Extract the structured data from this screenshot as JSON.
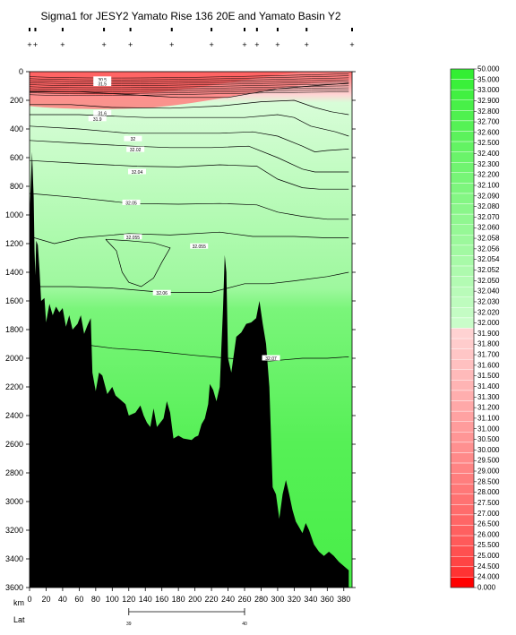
{
  "chart_data": {
    "type": "heatmap",
    "title": "Sigma1 for JESY2 Yamato Rise 136 20E and Yamato Basin Y2",
    "xlabel": "km",
    "x_ticks": [
      0,
      20,
      40,
      60,
      80,
      100,
      120,
      140,
      160,
      180,
      200,
      220,
      240,
      260,
      280,
      300,
      320,
      340,
      360,
      380
    ],
    "xlim": [
      0,
      390
    ],
    "y_ticks": [
      0,
      200,
      400,
      600,
      800,
      1000,
      1200,
      1400,
      1600,
      1800,
      2000,
      2200,
      2400,
      2600,
      2800,
      3000,
      3200,
      3400,
      3600
    ],
    "ylim": [
      3600,
      0
    ],
    "lat_label": "Lat",
    "lat_ticks": [
      {
        "km": 120,
        "label": "39"
      },
      {
        "km": 260,
        "label": "40"
      }
    ],
    "stations_km": [
      0,
      7,
      40,
      90,
      122,
      172,
      220,
      260,
      275,
      300,
      335,
      390
    ],
    "colorbar": {
      "levels": [
        "50.000",
        "35.000",
        "33.000",
        "32.900",
        "32.800",
        "32.700",
        "32.600",
        "32.500",
        "32.400",
        "32.300",
        "32.200",
        "32.100",
        "32.090",
        "32.080",
        "32.070",
        "32.060",
        "32.058",
        "32.056",
        "32.054",
        "32.052",
        "32.050",
        "32.040",
        "32.030",
        "32.020",
        "32.000",
        "31.900",
        "31.800",
        "31.700",
        "31.600",
        "31.500",
        "31.400",
        "31.300",
        "31.200",
        "31.100",
        "31.000",
        "30.500",
        "30.000",
        "29.500",
        "29.000",
        "28.500",
        "28.000",
        "27.500",
        "27.000",
        "26.500",
        "26.000",
        "25.500",
        "25.000",
        "24.500",
        "24.000",
        "0.000"
      ],
      "colors_top": [
        "#33ee33",
        "#3af03a",
        "#41f041",
        "#48f048",
        "#4ff14f",
        "#55f255",
        "#5cf25c",
        "#63f363",
        "#6af46a",
        "#70f470",
        "#77f577",
        "#7df57d",
        "#84f684",
        "#8af68a",
        "#90f790",
        "#96f896",
        "#9cf89c",
        "#a2f9a2",
        "#a8faa8",
        "#aefaae",
        "#b3fbb3",
        "#b9fbb9",
        "#befcbe",
        "#c4fcc4",
        "#c9fdc9"
      ],
      "colors_bottom": [
        "#ffd2d2",
        "#ffcccc",
        "#ffc6c6",
        "#ffc0c0",
        "#ffbaba",
        "#ffb4b4",
        "#ffaeae",
        "#ffa8a8",
        "#ffa2a2",
        "#ff9c9c",
        "#ff9696",
        "#ff9090",
        "#ff8a8a",
        "#ff8484",
        "#ff7e7e",
        "#ff7878",
        "#ff7272",
        "#ff6c6c",
        "#ff6666",
        "#ff6060",
        "#ff5a5a",
        "#ff5050",
        "#ff4444",
        "#ff3333",
        "#ff0000"
      ]
    },
    "contour_labels": [
      {
        "text": "32",
        "x": 125,
        "y": 470
      },
      {
        "text": "32.02",
        "x": 128,
        "y": 545
      },
      {
        "text": "32.04",
        "x": 130,
        "y": 700
      },
      {
        "text": "32.05",
        "x": 123,
        "y": 915
      },
      {
        "text": "32.055",
        "x": 125,
        "y": 1155
      },
      {
        "text": "32.055",
        "x": 205,
        "y": 1220
      },
      {
        "text": "32.06",
        "x": 160,
        "y": 1545
      },
      {
        "text": "32.07",
        "x": 292,
        "y": 2000
      },
      {
        "text": "30.5",
        "x": 88,
        "y": 55
      },
      {
        "text": "31.5",
        "x": 88,
        "y": 85
      },
      {
        "text": "31.6",
        "x": 88,
        "y": 290
      },
      {
        "text": "31.9",
        "x": 82,
        "y": 330
      }
    ],
    "bottom_depth_m": [
      [
        0,
        3600
      ],
      [
        0,
        1000
      ],
      [
        3,
        560
      ],
      [
        5,
        880
      ],
      [
        6,
        1250
      ],
      [
        7,
        1420
      ],
      [
        8,
        1180
      ],
      [
        10,
        1210
      ],
      [
        12,
        1380
      ],
      [
        14,
        1600
      ],
      [
        18,
        1580
      ],
      [
        20,
        1750
      ],
      [
        24,
        1620
      ],
      [
        28,
        1700
      ],
      [
        32,
        1640
      ],
      [
        36,
        1680
      ],
      [
        40,
        1650
      ],
      [
        44,
        1780
      ],
      [
        48,
        1700
      ],
      [
        52,
        1800
      ],
      [
        58,
        1760
      ],
      [
        62,
        1700
      ],
      [
        66,
        1830
      ],
      [
        70,
        1770
      ],
      [
        74,
        1720
      ],
      [
        76,
        2100
      ],
      [
        80,
        2230
      ],
      [
        84,
        2100
      ],
      [
        88,
        2120
      ],
      [
        94,
        2250
      ],
      [
        100,
        2200
      ],
      [
        104,
        2260
      ],
      [
        110,
        2290
      ],
      [
        116,
        2320
      ],
      [
        120,
        2400
      ],
      [
        128,
        2380
      ],
      [
        134,
        2330
      ],
      [
        138,
        2400
      ],
      [
        142,
        2450
      ],
      [
        146,
        2480
      ],
      [
        150,
        2350
      ],
      [
        154,
        2480
      ],
      [
        158,
        2450
      ],
      [
        162,
        2420
      ],
      [
        166,
        2300
      ],
      [
        170,
        2380
      ],
      [
        174,
        2560
      ],
      [
        180,
        2540
      ],
      [
        186,
        2560
      ],
      [
        196,
        2570
      ],
      [
        200,
        2550
      ],
      [
        204,
        2540
      ],
      [
        208,
        2460
      ],
      [
        212,
        2420
      ],
      [
        216,
        2320
      ],
      [
        218,
        2180
      ],
      [
        222,
        2220
      ],
      [
        226,
        2300
      ],
      [
        230,
        2200
      ],
      [
        232,
        1920
      ],
      [
        234,
        1650
      ],
      [
        236,
        1280
      ],
      [
        238,
        1400
      ],
      [
        240,
        2000
      ],
      [
        244,
        2100
      ],
      [
        250,
        1850
      ],
      [
        256,
        1820
      ],
      [
        262,
        1760
      ],
      [
        268,
        1750
      ],
      [
        274,
        1720
      ],
      [
        278,
        1600
      ],
      [
        282,
        1760
      ],
      [
        286,
        1900
      ],
      [
        290,
        2200
      ],
      [
        294,
        2900
      ],
      [
        298,
        2950
      ],
      [
        302,
        3120
      ],
      [
        306,
        2950
      ],
      [
        310,
        2850
      ],
      [
        314,
        2950
      ],
      [
        318,
        3060
      ],
      [
        322,
        3140
      ],
      [
        326,
        3180
      ],
      [
        330,
        3220
      ],
      [
        334,
        3150
      ],
      [
        338,
        3200
      ],
      [
        344,
        3300
      ],
      [
        350,
        3350
      ],
      [
        356,
        3380
      ],
      [
        362,
        3350
      ],
      [
        368,
        3380
      ],
      [
        374,
        3420
      ],
      [
        380,
        3450
      ],
      [
        386,
        3480
      ],
      [
        386,
        3600
      ]
    ],
    "contours": [
      [
        [
          0,
          140
        ],
        [
          60,
          140
        ],
        [
          120,
          160
        ],
        [
          180,
          180
        ],
        [
          240,
          180
        ],
        [
          300,
          120
        ],
        [
          340,
          100
        ],
        [
          386,
          80
        ]
      ],
      [
        [
          0,
          230
        ],
        [
          50,
          230
        ],
        [
          100,
          250
        ],
        [
          170,
          255
        ],
        [
          230,
          240
        ],
        [
          280,
          210
        ],
        [
          320,
          200
        ],
        [
          345,
          250
        ],
        [
          365,
          280
        ],
        [
          386,
          300
        ]
      ],
      [
        [
          0,
          300
        ],
        [
          60,
          300
        ],
        [
          140,
          320
        ],
        [
          200,
          320
        ],
        [
          260,
          320
        ],
        [
          300,
          300
        ],
        [
          320,
          320
        ],
        [
          340,
          380
        ],
        [
          370,
          420
        ],
        [
          386,
          450
        ]
      ],
      [
        [
          0,
          380
        ],
        [
          60,
          400
        ],
        [
          120,
          430
        ],
        [
          180,
          430
        ],
        [
          230,
          430
        ],
        [
          270,
          420
        ],
        [
          300,
          450
        ],
        [
          330,
          520
        ],
        [
          345,
          560
        ],
        [
          360,
          550
        ],
        [
          386,
          540
        ]
      ],
      [
        [
          0,
          480
        ],
        [
          60,
          500
        ],
        [
          125,
          520
        ],
        [
          170,
          530
        ],
        [
          220,
          530
        ],
        [
          265,
          520
        ],
        [
          300,
          600
        ],
        [
          330,
          680
        ],
        [
          345,
          700
        ],
        [
          370,
          700
        ],
        [
          386,
          700
        ]
      ],
      [
        [
          0,
          620
        ],
        [
          60,
          640
        ],
        [
          130,
          660
        ],
        [
          180,
          665
        ],
        [
          230,
          650
        ],
        [
          275,
          660
        ],
        [
          300,
          750
        ],
        [
          330,
          810
        ],
        [
          350,
          820
        ],
        [
          386,
          820
        ]
      ],
      [
        [
          0,
          850
        ],
        [
          60,
          880
        ],
        [
          123,
          920
        ],
        [
          180,
          925
        ],
        [
          230,
          920
        ],
        [
          275,
          930
        ],
        [
          300,
          980
        ],
        [
          330,
          1010
        ],
        [
          360,
          1030
        ],
        [
          386,
          1030
        ]
      ],
      [
        [
          0,
          1150
        ],
        [
          30,
          1200
        ],
        [
          60,
          1160
        ],
        [
          120,
          1130
        ],
        [
          170,
          1140
        ],
        [
          230,
          1120
        ],
        [
          270,
          1150
        ],
        [
          320,
          1150
        ],
        [
          360,
          1160
        ],
        [
          386,
          1160
        ]
      ],
      [
        [
          0,
          1500
        ],
        [
          50,
          1500
        ],
        [
          100,
          1510
        ],
        [
          160,
          1540
        ],
        [
          220,
          1540
        ],
        [
          260,
          1480
        ],
        [
          290,
          1480
        ],
        [
          320,
          1460
        ],
        [
          360,
          1430
        ],
        [
          386,
          1400
        ]
      ],
      [
        [
          0,
          1880
        ],
        [
          60,
          1900
        ],
        [
          100,
          1930
        ],
        [
          150,
          1950
        ],
        [
          200,
          1980
        ],
        [
          240,
          2000
        ],
        [
          290,
          2020
        ],
        [
          330,
          2000
        ],
        [
          360,
          2000
        ],
        [
          386,
          1990
        ]
      ]
    ],
    "closed_contour": [
      [
        92,
        1170
      ],
      [
        105,
        1250
      ],
      [
        112,
        1400
      ],
      [
        120,
        1470
      ],
      [
        135,
        1500
      ],
      [
        150,
        1440
      ],
      [
        160,
        1330
      ],
      [
        170,
        1230
      ],
      [
        150,
        1195
      ],
      [
        120,
        1180
      ],
      [
        92,
        1170
      ]
    ]
  }
}
